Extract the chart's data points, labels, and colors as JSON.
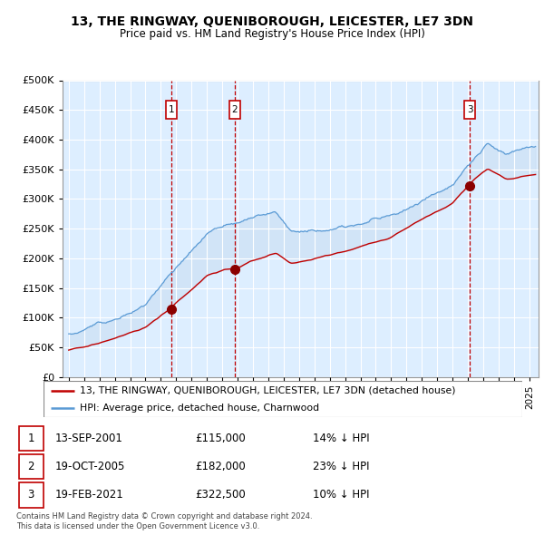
{
  "title": "13, THE RINGWAY, QUENIBOROUGH, LEICESTER, LE7 3DN",
  "subtitle": "Price paid vs. HM Land Registry's House Price Index (HPI)",
  "ylim": [
    0,
    500000
  ],
  "yticks": [
    0,
    50000,
    100000,
    150000,
    200000,
    250000,
    300000,
    350000,
    400000,
    450000,
    500000
  ],
  "xlim_start": 1994.6,
  "xlim_end": 2025.6,
  "sale_dates": [
    2001.71,
    2005.8,
    2021.12
  ],
  "sale_prices": [
    115000,
    182000,
    322500
  ],
  "sale_labels": [
    "1",
    "2",
    "3"
  ],
  "hpi_line_color": "#5b9bd5",
  "price_line_color": "#c00000",
  "sale_marker_color": "#8b0000",
  "dashed_line_color": "#c00000",
  "background_color": "#ddeeff",
  "fill_color": "#cce0f5",
  "legend_entries": [
    "13, THE RINGWAY, QUENIBOROUGH, LEICESTER, LE7 3DN (detached house)",
    "HPI: Average price, detached house, Charnwood"
  ],
  "table_rows": [
    [
      "1",
      "13-SEP-2001",
      "£115,000",
      "14% ↓ HPI"
    ],
    [
      "2",
      "19-OCT-2005",
      "£182,000",
      "23% ↓ HPI"
    ],
    [
      "3",
      "19-FEB-2021",
      "£322,500",
      "10% ↓ HPI"
    ]
  ],
  "footnote": "Contains HM Land Registry data © Crown copyright and database right 2024.\nThis data is licensed under the Open Government Licence v3.0.",
  "grid_color": "#ffffff",
  "label_box_color": "#c00000"
}
